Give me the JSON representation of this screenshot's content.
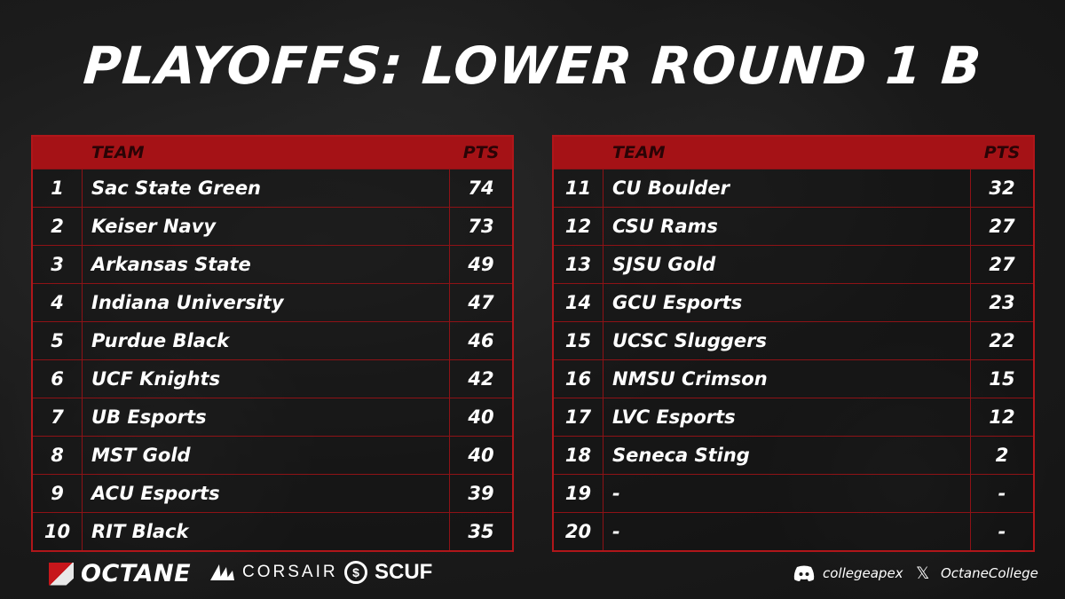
{
  "title": "PLAYOFFS: LOWER ROUND 1 B",
  "headers": {
    "team": "TEAM",
    "pts": "PTS"
  },
  "left_rows": [
    {
      "rank": "1",
      "team": "Sac State Green",
      "pts": "74"
    },
    {
      "rank": "2",
      "team": "Keiser Navy",
      "pts": "73"
    },
    {
      "rank": "3",
      "team": "Arkansas State",
      "pts": "49"
    },
    {
      "rank": "4",
      "team": "Indiana University",
      "pts": "47"
    },
    {
      "rank": "5",
      "team": "Purdue Black",
      "pts": "46"
    },
    {
      "rank": "6",
      "team": "UCF Knights",
      "pts": "42"
    },
    {
      "rank": "7",
      "team": "UB Esports",
      "pts": "40"
    },
    {
      "rank": "8",
      "team": "MST Gold",
      "pts": "40"
    },
    {
      "rank": "9",
      "team": "ACU Esports",
      "pts": "39"
    },
    {
      "rank": "10",
      "team": "RIT Black",
      "pts": "35"
    }
  ],
  "right_rows": [
    {
      "rank": "11",
      "team": "CU Boulder",
      "pts": "32"
    },
    {
      "rank": "12",
      "team": "CSU Rams",
      "pts": "27"
    },
    {
      "rank": "13",
      "team": "SJSU Gold",
      "pts": "27"
    },
    {
      "rank": "14",
      "team": "GCU Esports",
      "pts": "23"
    },
    {
      "rank": "15",
      "team": "UCSC Sluggers",
      "pts": "22"
    },
    {
      "rank": "16",
      "team": "NMSU Crimson",
      "pts": "15"
    },
    {
      "rank": "17",
      "team": "LVC Esports",
      "pts": "12"
    },
    {
      "rank": "18",
      "team": "Seneca Sting",
      "pts": "2"
    },
    {
      "rank": "19",
      "team": "-",
      "pts": "-"
    },
    {
      "rank": "20",
      "team": "-",
      "pts": "-"
    }
  ],
  "footer": {
    "octane": "OCTANE",
    "corsair": "CORSAIR",
    "scuf": "SCUF",
    "discord_handle": "collegeapex",
    "x_handle": "OctaneCollege"
  },
  "colors": {
    "accent": "#a51216",
    "border": "#b0161a",
    "background": "#1c1c1c"
  },
  "icons": [
    "octane-logo-icon",
    "corsair-sails-icon",
    "scuf-s-icon",
    "discord-icon",
    "x-icon"
  ]
}
